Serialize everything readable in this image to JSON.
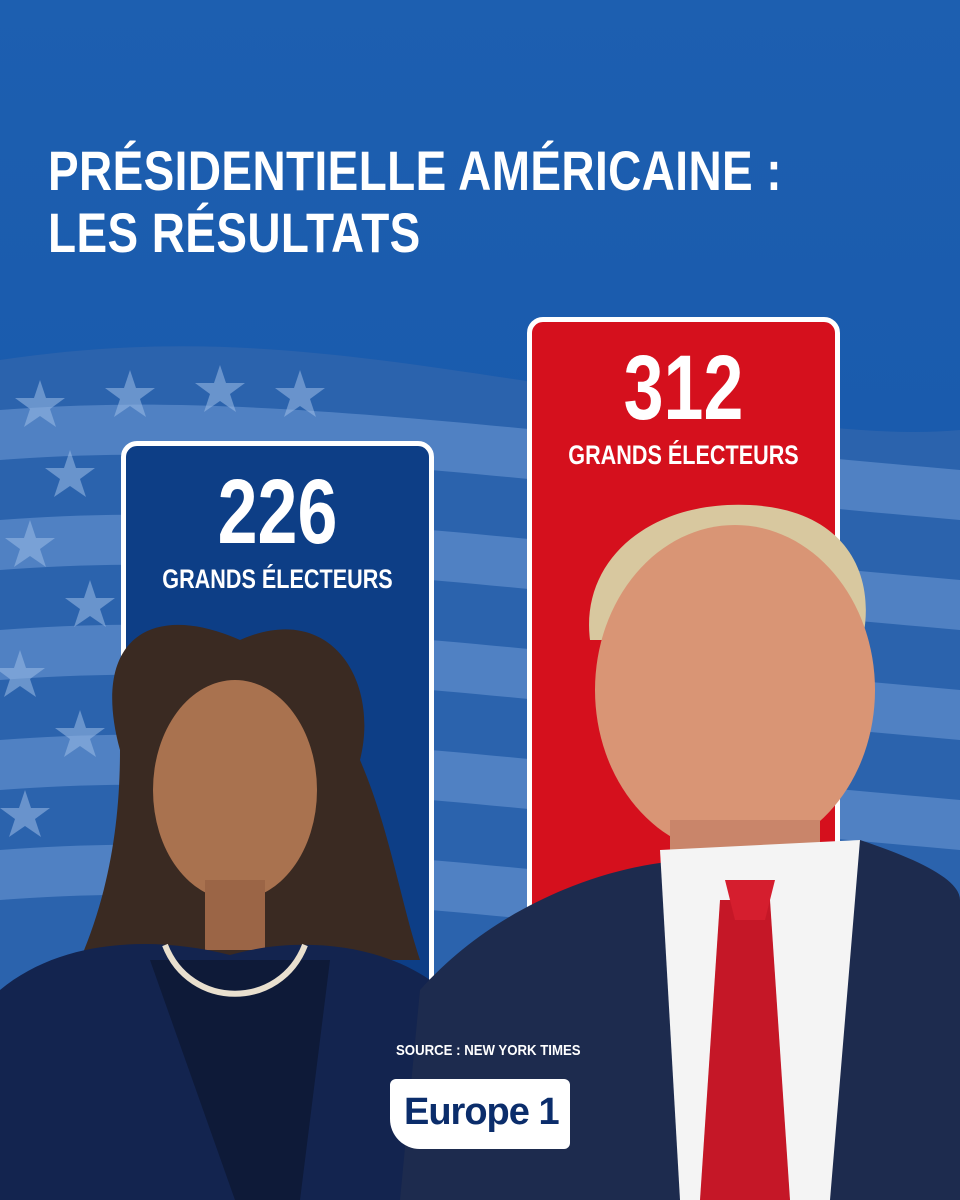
{
  "headline": {
    "line1": "PRÉSIDENTIELLE AMÉRICAINE :",
    "line2": "LES RÉSULTATS"
  },
  "chart_data": {
    "type": "bar",
    "categories": [
      "",
      ""
    ],
    "values": [
      226,
      312
    ],
    "unit_label": "GRANDS ÉLECTEURS",
    "colors": [
      "#0d3e86",
      "#d5101d"
    ]
  },
  "source": "SOURCE : NEW YORK TIMES",
  "logo": {
    "text": "Europe 1"
  }
}
